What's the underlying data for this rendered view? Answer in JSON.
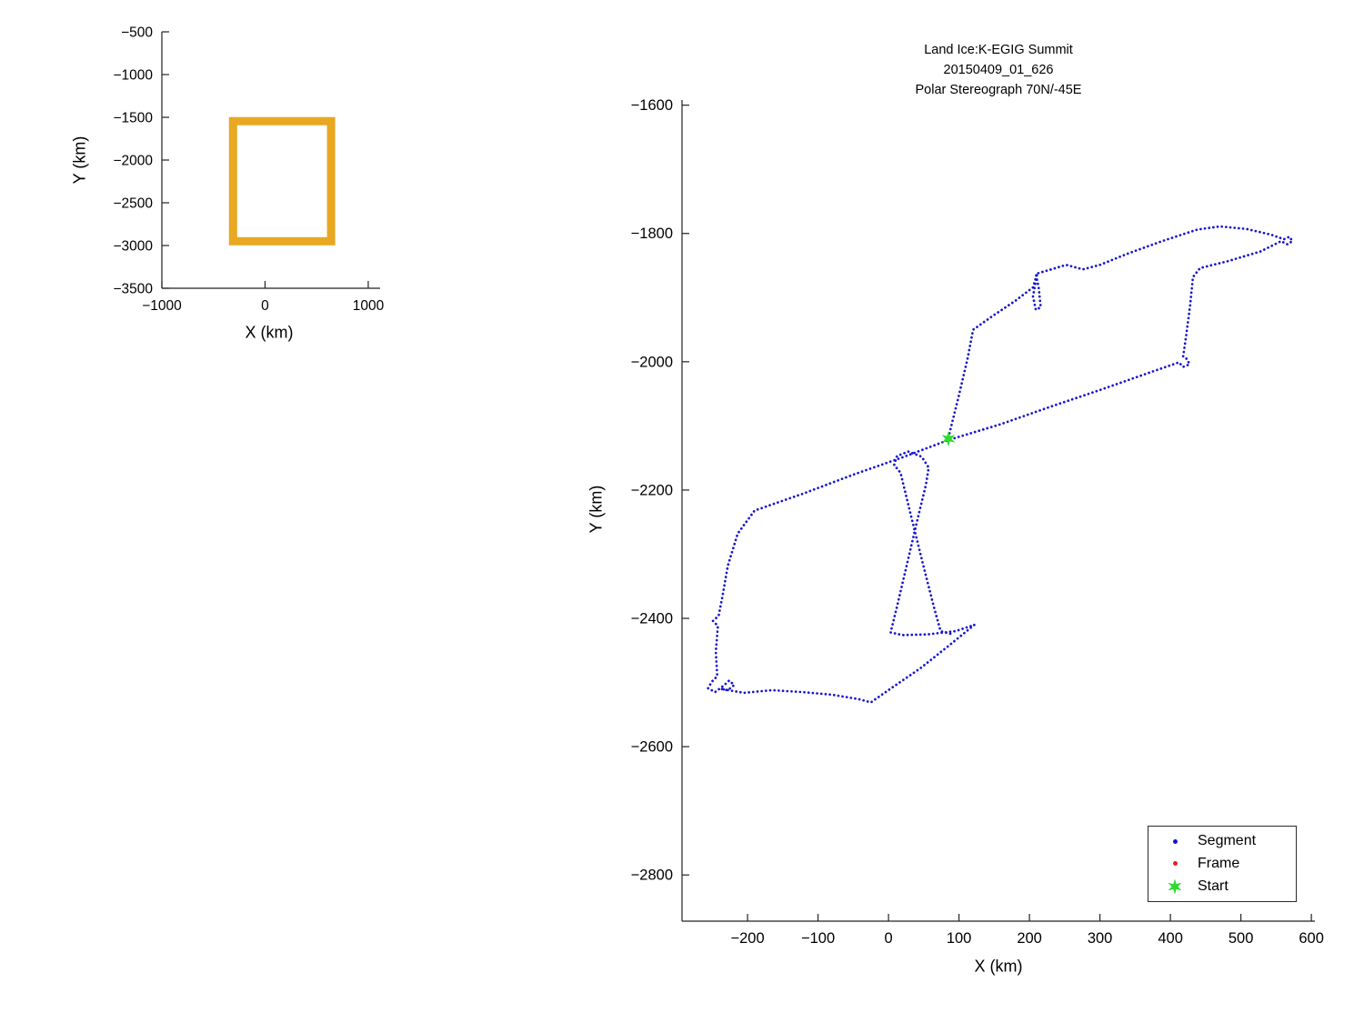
{
  "chart_data": [
    {
      "type": "line",
      "name": "overview-locator-plot",
      "title": "",
      "xlabel": "X (km)",
      "ylabel": "Y (km)",
      "xlim": [
        -1000,
        1115
      ],
      "ylim": [
        -500,
        -3500
      ],
      "x_ticks": [
        -1000,
        0,
        1000
      ],
      "y_ticks": [
        -500,
        -1000,
        -1500,
        -2000,
        -2500,
        -3000,
        -3500
      ],
      "grid": false,
      "series": [
        {
          "name": "coverage-box",
          "style": "rect-outline",
          "color": "#E8A822",
          "linewidth": 9,
          "rect": {
            "x0": -310,
            "x1": 640,
            "y0": -1545,
            "y1": -2950
          }
        }
      ]
    },
    {
      "type": "scatter",
      "name": "flight-track-plot",
      "title_lines": [
        "Land Ice:K-EGIG Summit",
        "20150409_01_626",
        "Polar Stereograph 70N/-45E"
      ],
      "xlabel": "X (km)",
      "ylabel": "Y (km)",
      "xlim": [
        -293,
        605
      ],
      "ylim": [
        -1592,
        -2872
      ],
      "x_ticks": [
        -200,
        -100,
        0,
        100,
        200,
        300,
        400,
        500,
        600
      ],
      "y_ticks": [
        -1600,
        -1800,
        -2000,
        -2200,
        -2400,
        -2600,
        -2800
      ],
      "grid": false,
      "series": [
        {
          "name": "Segment",
          "style": "dotted-path",
          "color": "#1515CE",
          "points": [
            [
              85,
              -2118
            ],
            [
              100,
              -2052
            ],
            [
              112,
              -1996
            ],
            [
              120,
              -1950
            ],
            [
              150,
              -1927
            ],
            [
              180,
              -1905
            ],
            [
              205,
              -1884
            ],
            [
              211,
              -1862
            ],
            [
              205,
              -1898
            ],
            [
              209,
              -1919
            ],
            [
              216,
              -1915
            ],
            [
              213,
              -1884
            ],
            [
              209,
              -1863
            ],
            [
              228,
              -1857
            ],
            [
              252,
              -1849
            ],
            [
              276,
              -1856
            ],
            [
              300,
              -1849
            ],
            [
              338,
              -1832
            ],
            [
              388,
              -1812
            ],
            [
              438,
              -1794
            ],
            [
              470,
              -1789
            ],
            [
              508,
              -1793
            ],
            [
              543,
              -1802
            ],
            [
              561,
              -1809
            ],
            [
              569,
              -1805
            ],
            [
              573,
              -1812
            ],
            [
              566,
              -1817
            ],
            [
              557,
              -1812
            ],
            [
              528,
              -1828
            ],
            [
              482,
              -1843
            ],
            [
              442,
              -1854
            ],
            [
              432,
              -1868
            ],
            [
              428,
              -1912
            ],
            [
              422,
              -1962
            ],
            [
              418,
              -1992
            ],
            [
              424,
              -1996
            ],
            [
              427,
              -2004
            ],
            [
              418,
              -2008
            ],
            [
              412,
              -2001
            ],
            [
              370,
              -2017
            ],
            [
              300,
              -2044
            ],
            [
              230,
              -2070
            ],
            [
              160,
              -2097
            ],
            [
              85,
              -2122
            ],
            [
              20,
              -2149
            ],
            [
              -50,
              -2176
            ],
            [
              -120,
              -2205
            ],
            [
              -190,
              -2232
            ],
            [
              -214,
              -2268
            ],
            [
              -228,
              -2318
            ],
            [
              -236,
              -2368
            ],
            [
              -241,
              -2396
            ],
            [
              -249,
              -2404
            ],
            [
              -242,
              -2412
            ],
            [
              -245,
              -2452
            ],
            [
              -243,
              -2490
            ],
            [
              -251,
              -2499
            ],
            [
              -256,
              -2509
            ],
            [
              -246,
              -2515
            ],
            [
              -234,
              -2505
            ],
            [
              -226,
              -2497
            ],
            [
              -219,
              -2504
            ],
            [
              -228,
              -2512
            ],
            [
              -238,
              -2510
            ],
            [
              -205,
              -2516
            ],
            [
              -165,
              -2512
            ],
            [
              -122,
              -2515
            ],
            [
              -80,
              -2519
            ],
            [
              -42,
              -2526
            ],
            [
              -25,
              -2531
            ],
            [
              5,
              -2508
            ],
            [
              45,
              -2478
            ],
            [
              85,
              -2443
            ],
            [
              122,
              -2410
            ],
            [
              95,
              -2420
            ],
            [
              55,
              -2425
            ],
            [
              20,
              -2426
            ],
            [
              3,
              -2422
            ],
            [
              12,
              -2382
            ],
            [
              27,
              -2312
            ],
            [
              42,
              -2242
            ],
            [
              53,
              -2192
            ],
            [
              57,
              -2165
            ],
            [
              47,
              -2148
            ],
            [
              28,
              -2140
            ],
            [
              12,
              -2147
            ],
            [
              8,
              -2161
            ],
            [
              17,
              -2173
            ],
            [
              33,
              -2245
            ],
            [
              50,
              -2320
            ],
            [
              65,
              -2385
            ],
            [
              74,
              -2420
            ],
            [
              88,
              -2424
            ]
          ]
        },
        {
          "name": "Frame",
          "style": "dots",
          "color": "#DD2222",
          "points": []
        },
        {
          "name": "Start",
          "style": "star",
          "color": "#2EDB2E",
          "points": [
            [
              85,
              -2120
            ]
          ]
        }
      ],
      "legend": {
        "position": "lower-right",
        "items": [
          {
            "label": "Segment",
            "marker": "dot",
            "color": "#1515CE"
          },
          {
            "label": "Frame",
            "marker": "dot",
            "color": "#DD2222"
          },
          {
            "label": "Start",
            "marker": "star",
            "color": "#2EDB2E"
          }
        ]
      }
    }
  ]
}
